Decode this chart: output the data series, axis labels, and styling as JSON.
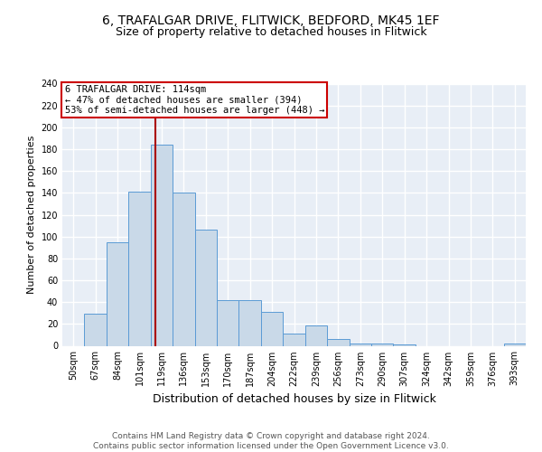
{
  "title_line1": "6, TRAFALGAR DRIVE, FLITWICK, BEDFORD, MK45 1EF",
  "title_line2": "Size of property relative to detached houses in Flitwick",
  "xlabel": "Distribution of detached houses by size in Flitwick",
  "ylabel": "Number of detached properties",
  "categories": [
    "50sqm",
    "67sqm",
    "84sqm",
    "101sqm",
    "119sqm",
    "136sqm",
    "153sqm",
    "170sqm",
    "187sqm",
    "204sqm",
    "222sqm",
    "239sqm",
    "256sqm",
    "273sqm",
    "290sqm",
    "307sqm",
    "324sqm",
    "342sqm",
    "359sqm",
    "376sqm",
    "393sqm"
  ],
  "values": [
    0,
    29,
    95,
    141,
    184,
    140,
    106,
    42,
    42,
    31,
    11,
    19,
    6,
    2,
    2,
    1,
    0,
    0,
    0,
    0,
    2
  ],
  "bar_color": "#c9d9e8",
  "bar_edge_color": "#5b9bd5",
  "background_color": "#e8eef6",
  "grid_color": "#ffffff",
  "vline_x_index": 4,
  "vline_color": "#aa0000",
  "annotation_text_line1": "6 TRAFALGAR DRIVE: 114sqm",
  "annotation_text_line2": "← 47% of detached houses are smaller (394)",
  "annotation_text_line3": "53% of semi-detached houses are larger (448) →",
  "annotation_box_color": "#ffffff",
  "annotation_box_edge_color": "#cc0000",
  "footer_text": "Contains HM Land Registry data © Crown copyright and database right 2024.\nContains public sector information licensed under the Open Government Licence v3.0.",
  "ylim": [
    0,
    240
  ],
  "yticks": [
    0,
    20,
    40,
    60,
    80,
    100,
    120,
    140,
    160,
    180,
    200,
    220,
    240
  ],
  "title_fontsize": 10,
  "subtitle_fontsize": 9,
  "xlabel_fontsize": 9,
  "ylabel_fontsize": 8,
  "tick_fontsize": 7,
  "annotation_fontsize": 7.5,
  "footer_fontsize": 6.5
}
